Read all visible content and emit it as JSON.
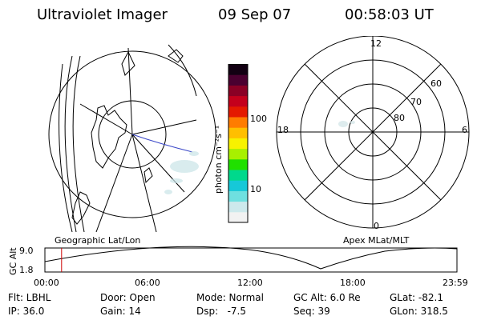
{
  "header": {
    "title": "Ultraviolet Imager",
    "date": "09 Sep 07",
    "time": "00:58:03 UT"
  },
  "colorbar": {
    "unit_label": "photon cm⁻²s⁻¹",
    "ticks": [
      "100",
      "10"
    ],
    "colors": [
      "#f2f2f2",
      "#cde9ec",
      "#6fe0e0",
      "#16c8d8",
      "#00d98c",
      "#20e000",
      "#a8f000",
      "#f7f200",
      "#ffbf00",
      "#ff7c00",
      "#e41a00",
      "#c4001c",
      "#8a0025",
      "#4a0030",
      "#120012"
    ]
  },
  "geo_map": {
    "label": "Geographic Lat/Lon"
  },
  "polar_plot": {
    "label": "Apex MLat/MLT",
    "mlt_labels": {
      "top": "12",
      "left": "18",
      "right": "6",
      "bottom": "0"
    },
    "lat_labels": [
      "60",
      "70",
      "80"
    ]
  },
  "altitude_strip": {
    "y_axis_label": "GC Alt",
    "y_ticks": [
      "9.0",
      "1.8"
    ],
    "x_ticks": [
      "00:00",
      "06:00",
      "12:00",
      "18:00",
      "23:59"
    ],
    "current_time_hours": 0.97,
    "marker_color": "#cc0000"
  },
  "info_panel": {
    "row1": [
      "Flt: LBHL",
      "Door: Open",
      "Mode: Normal",
      "GC Alt: 6.0 Re",
      "GLat: -82.1"
    ],
    "row2": [
      "IP: 36.0",
      "Gain: 14",
      "Dsp:   -7.5",
      "Seq: 39",
      "GLon: 318.5"
    ]
  }
}
